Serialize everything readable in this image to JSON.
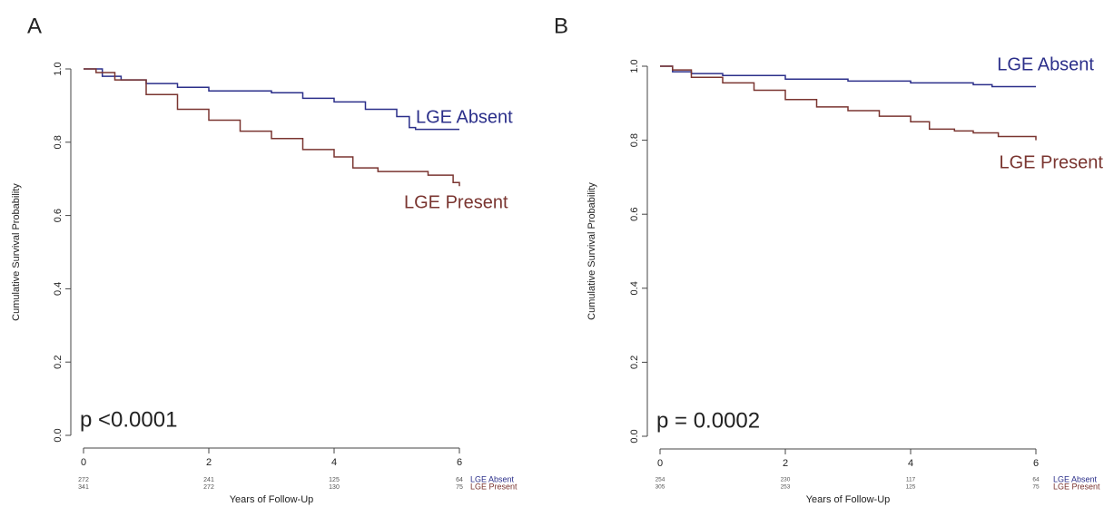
{
  "chart_data": [
    {
      "type": "line",
      "panel": "A",
      "annotation": "p <0.0001",
      "y_label": "Cumulative Survival Probability",
      "x_label": "Years of Follow-Up",
      "xlim": [
        0,
        6
      ],
      "ylim": [
        0,
        1
      ],
      "xticks": [
        0,
        2,
        4,
        6
      ],
      "yticks": [
        {
          "value": 0,
          "label": "0.0"
        },
        {
          "value": 0.2,
          "label": "0.2"
        },
        {
          "value": 0.4,
          "label": "0.4"
        },
        {
          "value": 0.6,
          "label": "0.6"
        },
        {
          "value": 0.8,
          "label": "0.8"
        },
        {
          "value": 1,
          "label": "1.0"
        }
      ],
      "series": [
        {
          "name": "LGE Absent",
          "color": "#2b2f8a",
          "x": [
            0,
            0.3,
            0.6,
            1,
            1.5,
            2,
            3,
            3.5,
            4,
            4.5,
            5,
            5.2,
            5.3,
            6
          ],
          "values": [
            1.0,
            0.98,
            0.97,
            0.96,
            0.95,
            0.94,
            0.935,
            0.92,
            0.91,
            0.89,
            0.87,
            0.84,
            0.835,
            0.835
          ],
          "at_risk": [
            272,
            241,
            125,
            64
          ]
        },
        {
          "name": "LGE Present",
          "color": "#7a3530",
          "x": [
            0,
            0.2,
            0.5,
            1,
            1.5,
            2,
            2.5,
            3,
            3.5,
            4,
            4.3,
            4.7,
            5.5,
            5.9,
            6
          ],
          "values": [
            1.0,
            0.99,
            0.97,
            0.93,
            0.89,
            0.86,
            0.83,
            0.81,
            0.78,
            0.76,
            0.73,
            0.72,
            0.71,
            0.69,
            0.68
          ],
          "at_risk": [
            341,
            272,
            130,
            75
          ]
        }
      ]
    },
    {
      "type": "line",
      "panel": "B",
      "annotation": "p = 0.0002",
      "y_label": "Cumulative Survival Probability",
      "x_label": "Years of Follow-Up",
      "xlim": [
        0,
        6
      ],
      "ylim": [
        0,
        1
      ],
      "xticks": [
        0,
        2,
        4,
        6
      ],
      "yticks": [
        {
          "value": 0,
          "label": "0.0"
        },
        {
          "value": 0.2,
          "label": "0.2"
        },
        {
          "value": 0.4,
          "label": "0.4"
        },
        {
          "value": 0.6,
          "label": "0.6"
        },
        {
          "value": 0.8,
          "label": "0.8"
        },
        {
          "value": 1,
          "label": "1.0"
        }
      ],
      "series": [
        {
          "name": "LGE Absent",
          "color": "#2b2f8a",
          "x": [
            0,
            0.2,
            0.5,
            1,
            2,
            3,
            4,
            5,
            5.3,
            6
          ],
          "values": [
            1.0,
            0.985,
            0.98,
            0.975,
            0.965,
            0.96,
            0.955,
            0.95,
            0.945,
            0.945
          ],
          "at_risk": [
            254,
            230,
            117,
            64
          ]
        },
        {
          "name": "LGE Present",
          "color": "#7a3530",
          "x": [
            0,
            0.2,
            0.5,
            1,
            1.5,
            2,
            2.5,
            3,
            3.5,
            4,
            4.3,
            4.7,
            5,
            5.4,
            6
          ],
          "values": [
            1.0,
            0.99,
            0.97,
            0.955,
            0.935,
            0.91,
            0.89,
            0.88,
            0.865,
            0.85,
            0.83,
            0.825,
            0.82,
            0.81,
            0.8
          ],
          "at_risk": [
            305,
            253,
            125,
            75
          ]
        }
      ]
    }
  ]
}
